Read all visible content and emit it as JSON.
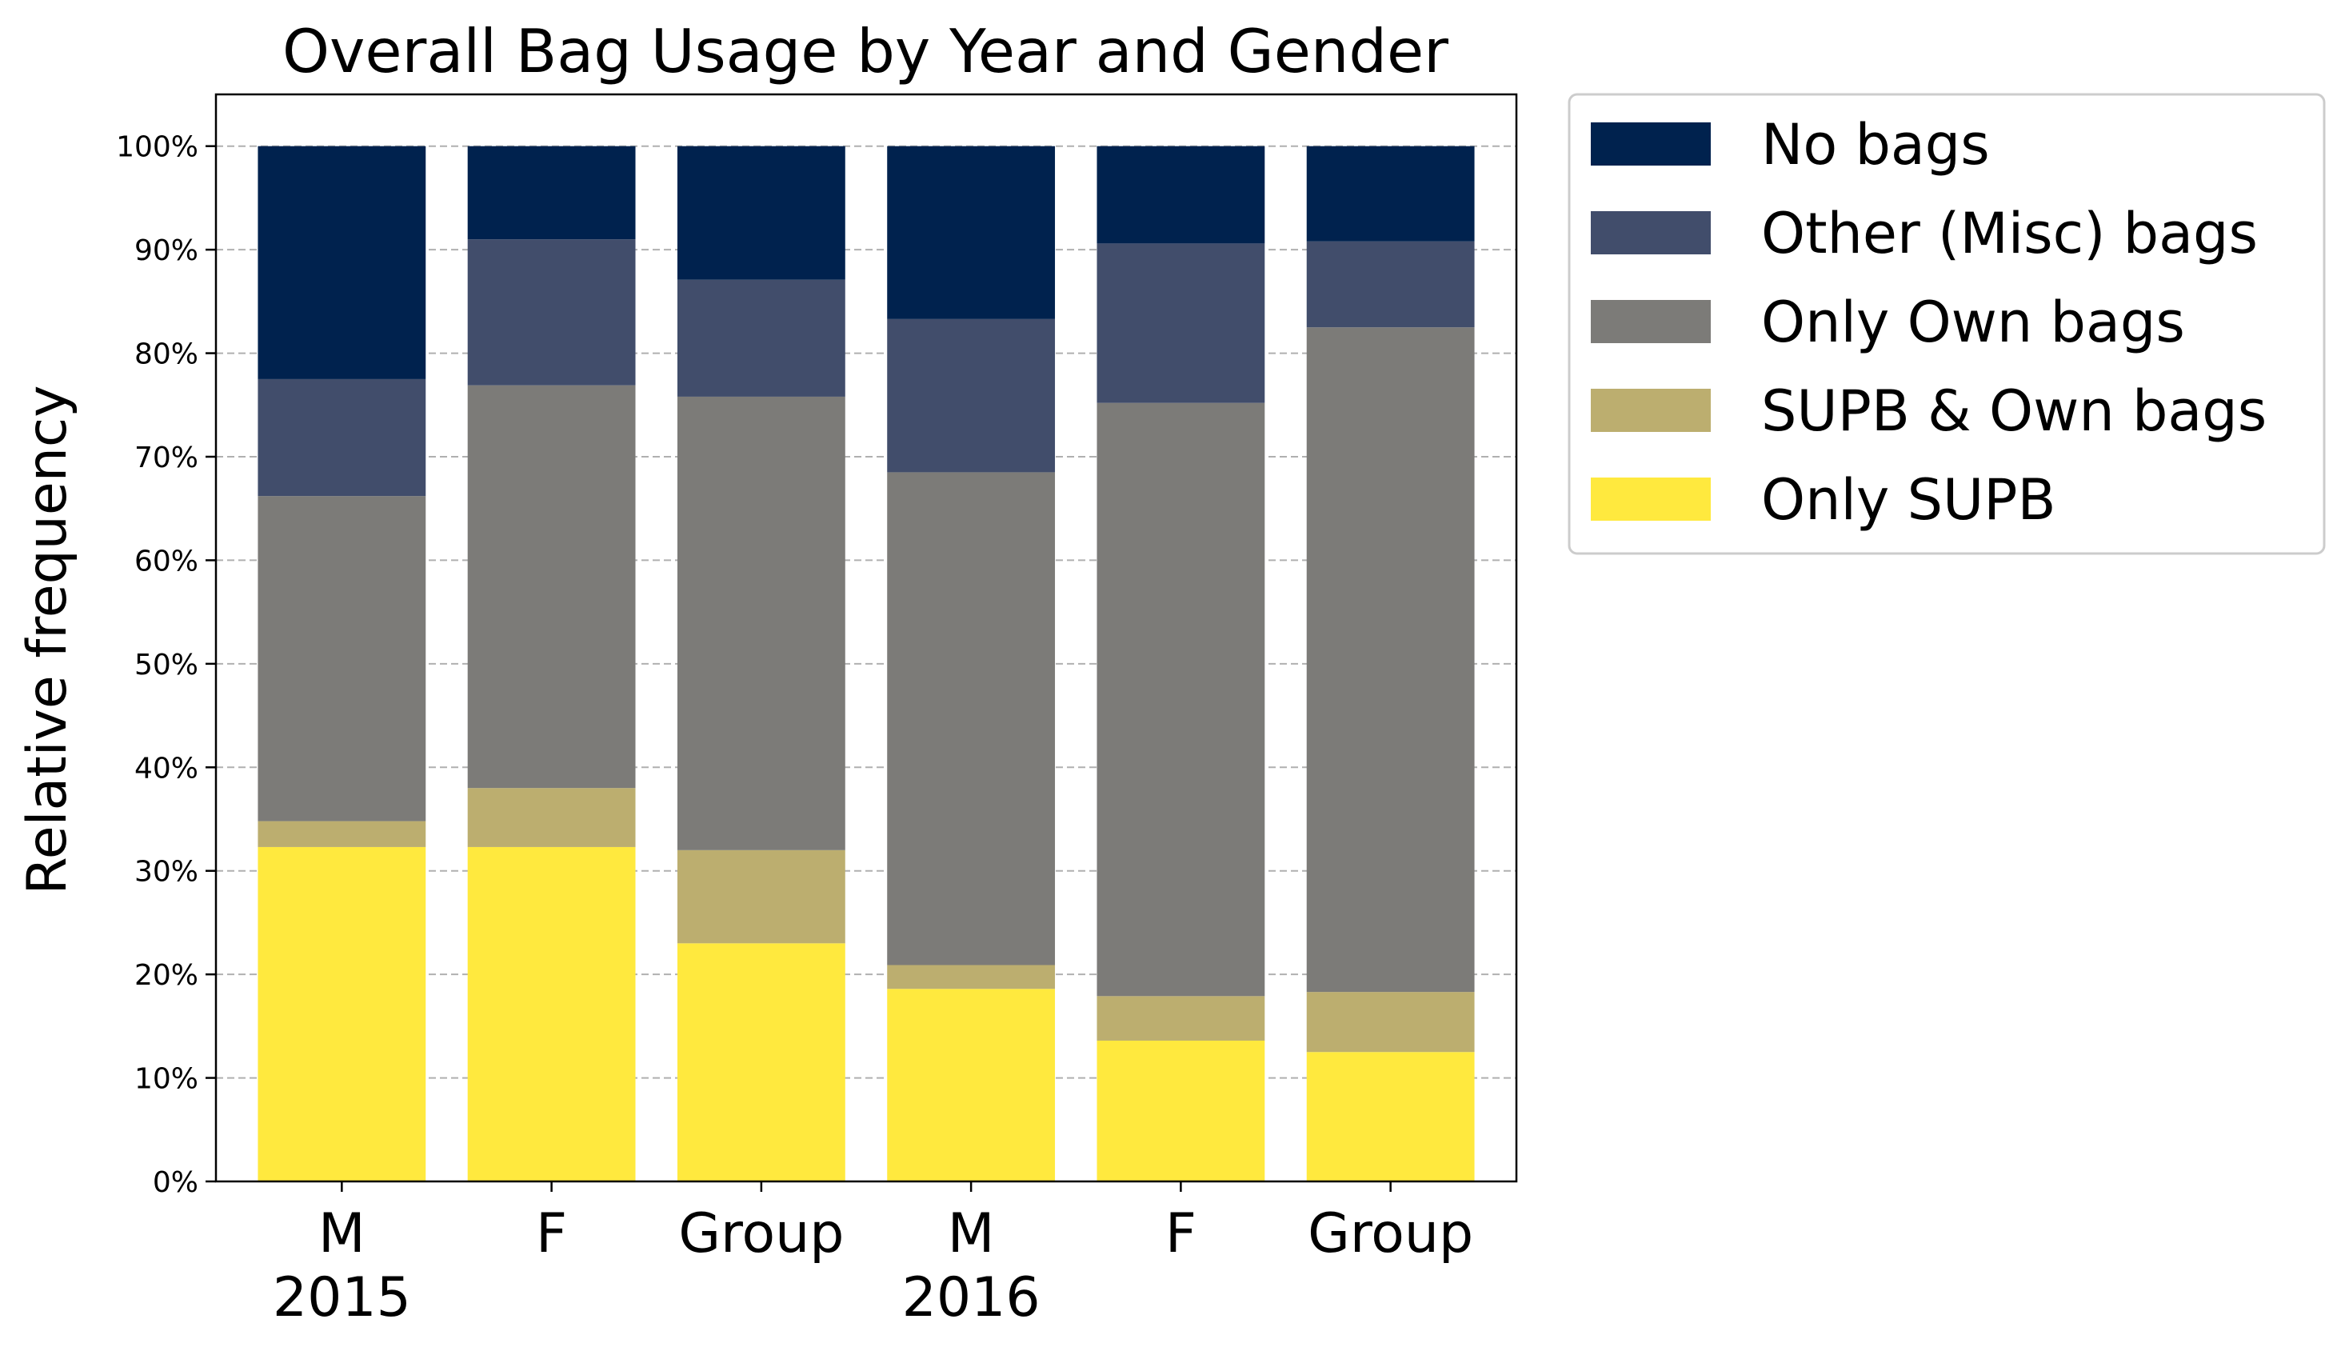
{
  "chart_data": {
    "type": "bar",
    "stacked": true,
    "title": "Overall Bag Usage by Year and Gender",
    "xlabel": "",
    "ylabel": "Relative frequency",
    "ylim": [
      0,
      105
    ],
    "yticks": [
      "0%",
      "10%",
      "20%",
      "30%",
      "40%",
      "50%",
      "60%",
      "70%",
      "80%",
      "90%",
      "100%"
    ],
    "grid": true,
    "legend_position": "outside-right-top",
    "categories": [
      "M",
      "F",
      "Group",
      "M",
      "F",
      "Group"
    ],
    "groups": [
      {
        "label": "2015",
        "start": 0,
        "end": 2,
        "anchor": 0
      },
      {
        "label": "2016",
        "start": 3,
        "end": 5,
        "anchor": 3
      }
    ],
    "series": [
      {
        "name": "Only SUPB",
        "color": "#ffe93e",
        "values": [
          32.3,
          32.3,
          23.0,
          18.6,
          13.6,
          12.5
        ]
      },
      {
        "name": "SUPB & Own bags",
        "color": "#bcae6f",
        "values": [
          2.5,
          5.7,
          9.0,
          2.3,
          4.3,
          5.8
        ]
      },
      {
        "name": "Only Own bags",
        "color": "#7c7b78",
        "values": [
          31.4,
          38.9,
          43.8,
          47.6,
          57.3,
          64.2
        ]
      },
      {
        "name": "Other (Misc) bags",
        "color": "#414d6b",
        "values": [
          11.3,
          14.1,
          11.3,
          14.8,
          15.4,
          8.3
        ]
      },
      {
        "name": "No bags",
        "color": "#00224e",
        "values": [
          22.5,
          9.0,
          12.9,
          16.7,
          9.4,
          9.2
        ]
      }
    ]
  }
}
